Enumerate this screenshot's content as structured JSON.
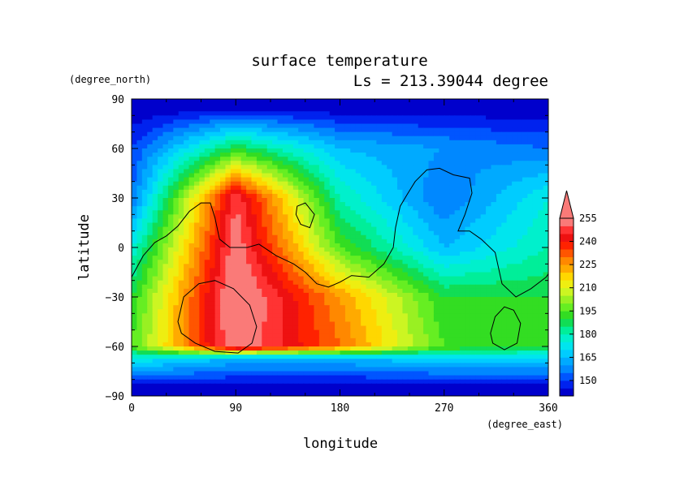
{
  "chart_data": {
    "type": "heatmap",
    "title": "surface temperature",
    "subtitle": "Ls = 213.39044 degree",
    "xlabel": "longitude",
    "ylabel": "latitude",
    "x_unit": "(degree_east)",
    "y_unit": "(degree_north)",
    "xlim": [
      0,
      360
    ],
    "ylim": [
      -90,
      90
    ],
    "x_ticks": [
      0,
      90,
      180,
      270,
      360
    ],
    "y_ticks": [
      90,
      60,
      30,
      0,
      -30,
      -60,
      -90
    ],
    "grid": false,
    "colorbar": {
      "levels": [
        145,
        150,
        155,
        160,
        165,
        170,
        175,
        180,
        185,
        190,
        195,
        200,
        205,
        210,
        215,
        220,
        225,
        230,
        235,
        240,
        245,
        250,
        255
      ],
      "labels": [
        150,
        165,
        180,
        195,
        210,
        225,
        240,
        255
      ],
      "colors": [
        "#0000cc",
        "#0022ee",
        "#0055ff",
        "#0088ff",
        "#00aaff",
        "#00ccff",
        "#00e5ee",
        "#00f0cc",
        "#00ee99",
        "#11dd55",
        "#33dd22",
        "#66ee22",
        "#99f022",
        "#ccf522",
        "#eeee11",
        "#ffd700",
        "#ffaa00",
        "#ff8800",
        "#ff5500",
        "#ff2200",
        "#ee1111",
        "#ff3333",
        "#fa7a78"
      ],
      "extend": "max"
    },
    "field_cells": [
      {
        "lon": 0,
        "lat": 86,
        "value": 145
      },
      {
        "lon": 90,
        "lat": 86,
        "value": 145
      },
      {
        "lon": 180,
        "lat": 86,
        "value": 145
      },
      {
        "lon": 270,
        "lat": 86,
        "value": 145
      },
      {
        "lon": 360,
        "lat": 86,
        "value": 145
      },
      {
        "lon": 0,
        "lat": 60,
        "value": 155
      },
      {
        "lon": 90,
        "lat": 60,
        "value": 195
      },
      {
        "lon": 180,
        "lat": 60,
        "value": 170
      },
      {
        "lon": 270,
        "lat": 60,
        "value": 165
      },
      {
        "lon": 360,
        "lat": 60,
        "value": 160
      },
      {
        "lon": 0,
        "lat": 30,
        "value": 160
      },
      {
        "lon": 90,
        "lat": 30,
        "value": 255
      },
      {
        "lon": 180,
        "lat": 30,
        "value": 185
      },
      {
        "lon": 270,
        "lat": 30,
        "value": 160
      },
      {
        "lon": 360,
        "lat": 30,
        "value": 180
      },
      {
        "lon": 0,
        "lat": 0,
        "value": 180
      },
      {
        "lon": 90,
        "lat": 0,
        "value": 260
      },
      {
        "lon": 180,
        "lat": 0,
        "value": 200
      },
      {
        "lon": 270,
        "lat": 0,
        "value": 170
      },
      {
        "lon": 360,
        "lat": 0,
        "value": 185
      },
      {
        "lon": 0,
        "lat": -30,
        "value": 195
      },
      {
        "lon": 90,
        "lat": -30,
        "value": 265
      },
      {
        "lon": 180,
        "lat": -30,
        "value": 230
      },
      {
        "lon": 270,
        "lat": -30,
        "value": 195
      },
      {
        "lon": 360,
        "lat": -30,
        "value": 195
      },
      {
        "lon": 0,
        "lat": -60,
        "value": 200
      },
      {
        "lon": 90,
        "lat": -60,
        "value": 262
      },
      {
        "lon": 180,
        "lat": -60,
        "value": 235
      },
      {
        "lon": 270,
        "lat": -60,
        "value": 200
      },
      {
        "lon": 360,
        "lat": -60,
        "value": 195
      },
      {
        "lon": 0,
        "lat": -67,
        "value": 180
      },
      {
        "lon": 90,
        "lat": -67,
        "value": 170
      },
      {
        "lon": 180,
        "lat": -67,
        "value": 170
      },
      {
        "lon": 270,
        "lat": -67,
        "value": 175
      },
      {
        "lon": 360,
        "lat": -67,
        "value": 175
      },
      {
        "lon": 0,
        "lat": -86,
        "value": 145
      },
      {
        "lon": 90,
        "lat": -86,
        "value": 145
      },
      {
        "lon": 180,
        "lat": -86,
        "value": 145
      },
      {
        "lon": 270,
        "lat": -86,
        "value": 145
      },
      {
        "lon": 360,
        "lat": -86,
        "value": 145
      }
    ],
    "contours": [
      {
        "name": "dichotomy-boundary",
        "closed": false,
        "points": [
          [
            0,
            -18
          ],
          [
            10,
            -5
          ],
          [
            20,
            3
          ],
          [
            30,
            7
          ],
          [
            40,
            13
          ],
          [
            50,
            22
          ],
          [
            60,
            27
          ],
          [
            68,
            27
          ],
          [
            72,
            18
          ],
          [
            76,
            5
          ],
          [
            85,
            0
          ],
          [
            100,
            0
          ],
          [
            110,
            2
          ],
          [
            125,
            -5
          ],
          [
            140,
            -10
          ],
          [
            150,
            -15
          ],
          [
            160,
            -22
          ],
          [
            170,
            -24
          ],
          [
            180,
            -21
          ],
          [
            190,
            -17
          ],
          [
            205,
            -18
          ],
          [
            218,
            -10
          ],
          [
            226,
            0
          ],
          [
            228,
            12
          ],
          [
            232,
            25
          ],
          [
            238,
            32
          ],
          [
            245,
            40
          ],
          [
            255,
            47
          ],
          [
            266,
            48
          ],
          [
            278,
            44
          ],
          [
            292,
            42
          ],
          [
            294,
            33
          ],
          [
            288,
            20
          ],
          [
            282,
            10
          ],
          [
            292,
            10
          ],
          [
            302,
            5
          ],
          [
            314,
            -3
          ],
          [
            320,
            -22
          ],
          [
            332,
            -30
          ],
          [
            345,
            -25
          ],
          [
            358,
            -18
          ],
          [
            360,
            -16
          ]
        ]
      },
      {
        "name": "hellas-basin",
        "closed": true,
        "points": [
          [
            40,
            -45
          ],
          [
            45,
            -30
          ],
          [
            58,
            -22
          ],
          [
            72,
            -20
          ],
          [
            88,
            -25
          ],
          [
            102,
            -35
          ],
          [
            108,
            -48
          ],
          [
            104,
            -58
          ],
          [
            92,
            -64
          ],
          [
            72,
            -63
          ],
          [
            55,
            -58
          ],
          [
            43,
            -52
          ]
        ]
      },
      {
        "name": "argyre-basin",
        "closed": true,
        "points": [
          [
            310,
            -52
          ],
          [
            314,
            -42
          ],
          [
            322,
            -36
          ],
          [
            330,
            -38
          ],
          [
            336,
            -46
          ],
          [
            333,
            -58
          ],
          [
            322,
            -62
          ],
          [
            312,
            -58
          ]
        ]
      },
      {
        "name": "small-basin-north",
        "closed": true,
        "points": [
          [
            143,
            25
          ],
          [
            150,
            27
          ],
          [
            158,
            20
          ],
          [
            154,
            12
          ],
          [
            146,
            14
          ],
          [
            142,
            20
          ]
        ]
      }
    ]
  }
}
